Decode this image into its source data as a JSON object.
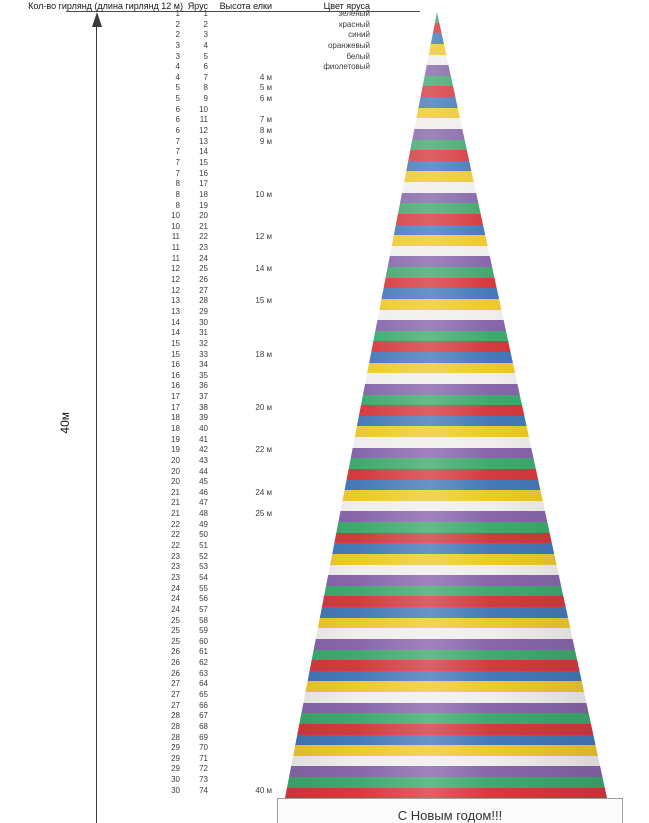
{
  "header": {
    "col_garlands": "Кол-во гирлянд (длина гирлянд 12 м)",
    "col_tier": "Ярус",
    "col_height": "Высота елки",
    "col_color": "Цвет яруса"
  },
  "left_axis": {
    "label": "40м"
  },
  "banner": {
    "text": "С Новым годом!!!"
  },
  "tree": {
    "tier_count": 74,
    "stripe_colors": [
      "#3FA96E",
      "#D43A3E",
      "#4579B8",
      "#EDC832",
      "#EFEEEC",
      "#8766AA"
    ],
    "color_names": [
      "зеленый",
      "красный",
      "синий",
      "оранжевый",
      "белый",
      "фиолетовый"
    ]
  },
  "chart_data": {
    "type": "table",
    "title": "",
    "columns": [
      "Кол-во гирлянд (длина гирлянд 12 м)",
      "Ярус",
      "Высота елки",
      "Цвет яруса"
    ],
    "color_cycle": [
      "зеленый",
      "красный",
      "синий",
      "оранжевый",
      "белый",
      "фиолетовый"
    ],
    "total_height_label": "40м",
    "rows": [
      [
        1,
        1,
        "",
        "зеленый"
      ],
      [
        2,
        2,
        "",
        "красный"
      ],
      [
        2,
        3,
        "",
        "синий"
      ],
      [
        3,
        4,
        "",
        "оранжевый"
      ],
      [
        3,
        5,
        "",
        "белый"
      ],
      [
        4,
        6,
        "",
        "фиолетовый"
      ],
      [
        4,
        7,
        "4 м",
        ""
      ],
      [
        5,
        8,
        "5 м",
        ""
      ],
      [
        5,
        9,
        "6 м",
        ""
      ],
      [
        6,
        10,
        "",
        ""
      ],
      [
        6,
        11,
        "7 м",
        ""
      ],
      [
        6,
        12,
        "8 м",
        ""
      ],
      [
        7,
        13,
        "9 м",
        ""
      ],
      [
        7,
        14,
        "",
        ""
      ],
      [
        7,
        15,
        "",
        ""
      ],
      [
        7,
        16,
        "",
        ""
      ],
      [
        8,
        17,
        "",
        ""
      ],
      [
        8,
        18,
        "10 м",
        ""
      ],
      [
        8,
        19,
        "",
        ""
      ],
      [
        10,
        20,
        "",
        ""
      ],
      [
        10,
        21,
        "",
        ""
      ],
      [
        11,
        22,
        "12 м",
        ""
      ],
      [
        11,
        23,
        "",
        ""
      ],
      [
        11,
        24,
        "",
        ""
      ],
      [
        12,
        25,
        "14 м",
        ""
      ],
      [
        12,
        26,
        "",
        ""
      ],
      [
        12,
        27,
        "",
        ""
      ],
      [
        13,
        28,
        "15 м",
        ""
      ],
      [
        13,
        29,
        "",
        ""
      ],
      [
        14,
        30,
        "",
        ""
      ],
      [
        14,
        31,
        "",
        ""
      ],
      [
        15,
        32,
        "",
        ""
      ],
      [
        15,
        33,
        "18 м",
        ""
      ],
      [
        16,
        34,
        "",
        ""
      ],
      [
        16,
        35,
        "",
        ""
      ],
      [
        16,
        36,
        "",
        ""
      ],
      [
        17,
        37,
        "",
        ""
      ],
      [
        17,
        38,
        "20 м",
        ""
      ],
      [
        18,
        39,
        "",
        ""
      ],
      [
        18,
        40,
        "",
        ""
      ],
      [
        19,
        41,
        "",
        ""
      ],
      [
        19,
        42,
        "22 м",
        ""
      ],
      [
        20,
        43,
        "",
        ""
      ],
      [
        20,
        44,
        "",
        ""
      ],
      [
        20,
        45,
        "",
        ""
      ],
      [
        21,
        46,
        "24 м",
        ""
      ],
      [
        21,
        47,
        "",
        ""
      ],
      [
        21,
        48,
        "25 м",
        ""
      ],
      [
        22,
        49,
        "",
        ""
      ],
      [
        22,
        50,
        "",
        ""
      ],
      [
        22,
        51,
        "",
        ""
      ],
      [
        23,
        52,
        "",
        ""
      ],
      [
        23,
        53,
        "",
        ""
      ],
      [
        23,
        54,
        "",
        ""
      ],
      [
        24,
        55,
        "",
        ""
      ],
      [
        24,
        56,
        "",
        ""
      ],
      [
        24,
        57,
        "",
        ""
      ],
      [
        25,
        58,
        "",
        ""
      ],
      [
        25,
        59,
        "",
        ""
      ],
      [
        25,
        60,
        "",
        ""
      ],
      [
        26,
        61,
        "",
        ""
      ],
      [
        26,
        62,
        "",
        ""
      ],
      [
        26,
        63,
        "",
        ""
      ],
      [
        27,
        64,
        "",
        ""
      ],
      [
        27,
        65,
        "",
        ""
      ],
      [
        27,
        66,
        "",
        ""
      ],
      [
        28,
        67,
        "",
        ""
      ],
      [
        28,
        68,
        "",
        ""
      ],
      [
        28,
        69,
        "",
        ""
      ],
      [
        29,
        70,
        "",
        ""
      ],
      [
        29,
        71,
        "",
        ""
      ],
      [
        29,
        72,
        "",
        ""
      ],
      [
        30,
        73,
        "",
        ""
      ],
      [
        30,
        74,
        "40 м",
        ""
      ]
    ]
  }
}
